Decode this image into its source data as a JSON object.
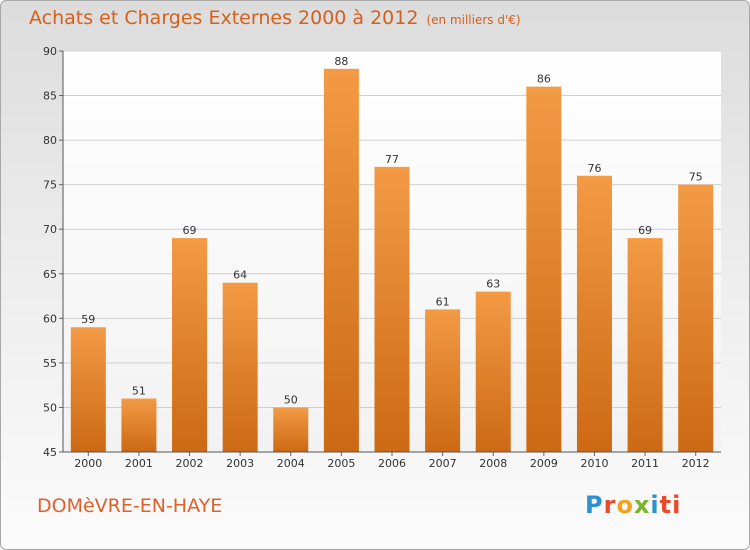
{
  "title": "Achats et Charges Externes 2000 à 2012",
  "unit": "(en milliers d'€)",
  "commune": "DOMèVRE-EN-HAYE",
  "logo": {
    "letters": [
      "P",
      "r",
      "o",
      "x",
      "i",
      "t",
      "i"
    ]
  },
  "chart_data": {
    "type": "bar",
    "title": "Achats et Charges Externes 2000 à 2012",
    "subtitle": "(en milliers d'€)",
    "categories": [
      "2000",
      "2001",
      "2002",
      "2003",
      "2004",
      "2005",
      "2006",
      "2007",
      "2008",
      "2009",
      "2010",
      "2011",
      "2012"
    ],
    "values": [
      59,
      51,
      69,
      64,
      50,
      88,
      77,
      61,
      63,
      86,
      76,
      69,
      75
    ],
    "ylim": [
      45,
      90
    ],
    "yticks": [
      45,
      50,
      55,
      60,
      65,
      70,
      75,
      80,
      85,
      90
    ],
    "grid": true,
    "bar_color": "#f39a45",
    "bar_color_dark": "#cc6914"
  }
}
